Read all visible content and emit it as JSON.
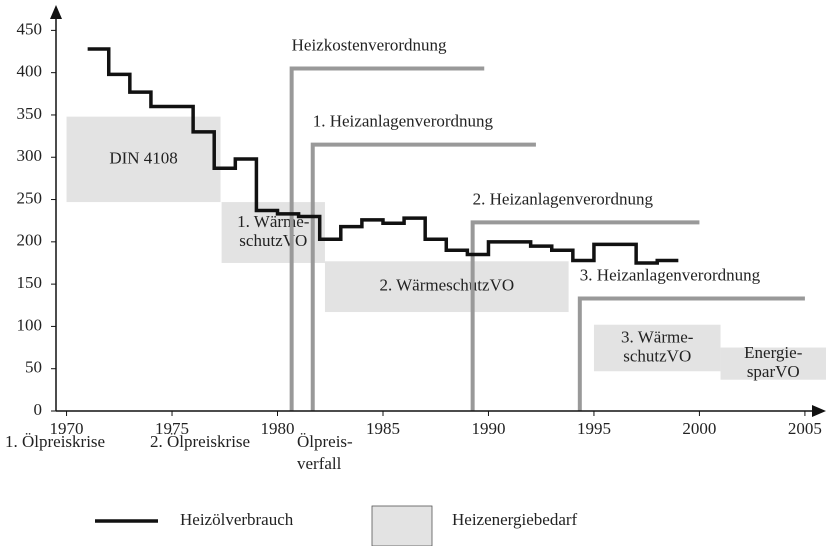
{
  "chart_data": {
    "type": "step",
    "xlim": [
      1969.5,
      2006
    ],
    "ylim": [
      0,
      480
    ],
    "xticks": [
      1970,
      1975,
      1980,
      1985,
      1990,
      1995,
      2000,
      2005
    ],
    "yticks": [
      0,
      50,
      100,
      150,
      200,
      250,
      300,
      350,
      400,
      450
    ],
    "series": [
      {
        "name": "Heizölverbrauch",
        "color": "#111111",
        "x": [
          1971,
          1972,
          1973,
          1974,
          1976,
          1977,
          1978,
          1979,
          1980,
          1981,
          1982,
          1983,
          1984,
          1985,
          1986,
          1987,
          1988,
          1989,
          1990,
          1992,
          1993,
          1994,
          1995,
          1997,
          1998,
          1999
        ],
        "values": [
          428,
          398,
          377,
          360,
          330,
          287,
          298,
          237,
          233,
          230,
          203,
          218,
          226,
          222,
          228,
          203,
          190,
          185,
          200,
          195,
          190,
          178,
          197,
          175,
          178,
          178
        ]
      }
    ],
    "boxes_name": "Heizenergiebedarf",
    "box_color": "#e3e3e3",
    "boxes": [
      {
        "label": [
          "DIN 4108"
        ],
        "x": [
          1970,
          1977.3
        ],
        "y": [
          247,
          348
        ]
      },
      {
        "label": [
          "1. Wärme-",
          "schutzVO"
        ],
        "x": [
          1977.35,
          1982.25
        ],
        "y": [
          175,
          247
        ]
      },
      {
        "label": [
          "2. WärmeschutzVO"
        ],
        "x": [
          1982.25,
          1993.8
        ],
        "y": [
          117,
          177
        ]
      },
      {
        "label": [
          "3. Wärme-",
          "schutzVO"
        ],
        "x": [
          1995,
          2001
        ],
        "y": [
          47,
          102
        ]
      },
      {
        "label": [
          "Energie-",
          "sparVO"
        ],
        "x": [
          2001,
          2006
        ],
        "y": [
          37,
          75
        ]
      }
    ],
    "regulation_color": "#999999",
    "regulations": [
      {
        "label": "Heizkostenverordnung",
        "x": [
          1980.67,
          1989.8
        ],
        "y": 405
      },
      {
        "label": "1. Heizanlagenverordnung",
        "x": [
          1981.67,
          1992.25
        ],
        "y": 315
      },
      {
        "label": "2. Heizanlagenverordnung",
        "x": [
          1989.25,
          2000
        ],
        "y": 223
      },
      {
        "label": "3. Heizanlagenverordnung",
        "x": [
          1994.33,
          2005
        ],
        "y": 133
      }
    ],
    "annotations": [
      [
        "1. Ölpreiskrise"
      ],
      [
        "2. Ölpreiskrise"
      ],
      [
        "Ölpreis-",
        "verfall"
      ]
    ]
  }
}
